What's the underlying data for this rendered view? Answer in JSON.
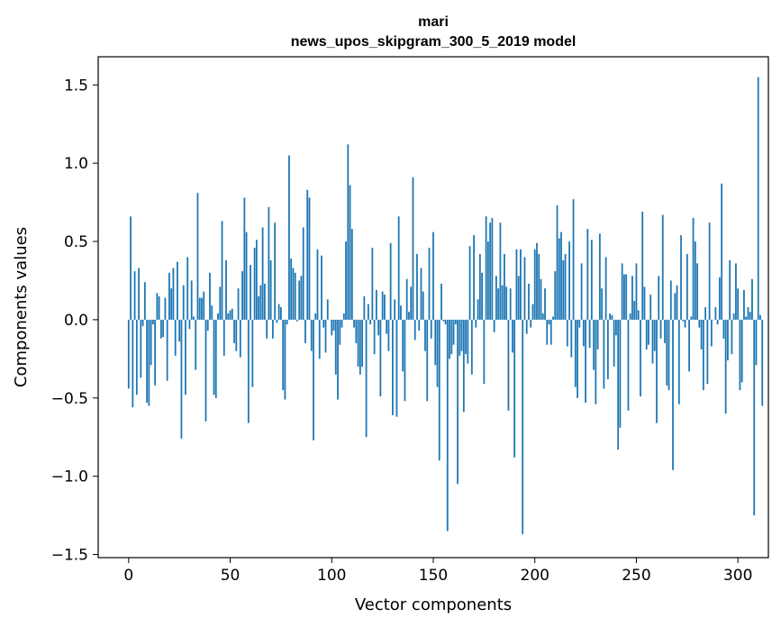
{
  "chart_data": {
    "type": "bar",
    "title": "mari",
    "subtitle": "news_upos_skipgram_300_5_2019 model",
    "xlabel": "Vector components",
    "ylabel": "Components values",
    "xlim": [
      -15,
      315
    ],
    "ylim": [
      -1.52,
      1.68
    ],
    "xticks": [
      0,
      50,
      100,
      150,
      200,
      250,
      300
    ],
    "yticks": [
      -1.5,
      -1.0,
      -0.5,
      0.0,
      0.5,
      1.0,
      1.5
    ],
    "ytick_labels": [
      "−1.5",
      "−1.0",
      "−0.5",
      "0.0",
      "0.5",
      "1.0",
      "1.5"
    ],
    "bar_color": "#1f77b4",
    "grid": false,
    "x_start": 0,
    "values": [
      -0.44,
      0.66,
      -0.56,
      0.31,
      -0.48,
      0.33,
      -0.37,
      -0.04,
      0.24,
      -0.53,
      -0.55,
      -0.29,
      -0.03,
      -0.42,
      0.17,
      0.15,
      -0.12,
      -0.11,
      0.14,
      -0.39,
      0.3,
      0.2,
      0.33,
      -0.23,
      0.37,
      -0.14,
      -0.76,
      0.22,
      -0.48,
      0.4,
      -0.06,
      0.25,
      0.02,
      -0.32,
      0.81,
      0.14,
      0.14,
      0.18,
      -0.65,
      -0.07,
      0.3,
      0.09,
      -0.48,
      -0.5,
      0.04,
      0.21,
      0.63,
      -0.23,
      0.38,
      0.04,
      0.06,
      0.07,
      -0.15,
      -0.2,
      0.2,
      -0.24,
      0.31,
      0.78,
      0.56,
      -0.66,
      0.35,
      -0.43,
      0.46,
      0.51,
      0.15,
      0.22,
      0.59,
      0.23,
      -0.12,
      0.72,
      0.38,
      -0.12,
      0.62,
      -0.02,
      0.1,
      0.08,
      -0.45,
      -0.51,
      -0.03,
      1.05,
      0.39,
      0.33,
      0.3,
      -0.01,
      0.25,
      0.28,
      0.59,
      -0.15,
      0.83,
      0.78,
      -0.2,
      -0.77,
      0.04,
      0.45,
      -0.25,
      0.41,
      -0.05,
      -0.21,
      0.13,
      0.0,
      -0.1,
      -0.07,
      -0.35,
      -0.51,
      -0.16,
      -0.05,
      0.04,
      0.5,
      1.12,
      0.86,
      0.58,
      -0.05,
      -0.15,
      -0.3,
      -0.35,
      -0.3,
      0.15,
      -0.75,
      0.1,
      -0.03,
      0.46,
      -0.22,
      0.19,
      -0.1,
      -0.49,
      0.18,
      0.16,
      -0.09,
      -0.2,
      0.49,
      -0.61,
      0.13,
      -0.62,
      0.66,
      0.09,
      -0.33,
      -0.52,
      0.26,
      0.05,
      0.21,
      0.91,
      -0.13,
      0.42,
      -0.07,
      0.33,
      0.18,
      -0.2,
      -0.52,
      0.46,
      -0.12,
      0.56,
      -0.29,
      -0.43,
      -0.9,
      0.23,
      -0.01,
      -0.03,
      -1.35,
      -0.25,
      -0.22,
      -0.16,
      -0.03,
      -1.05,
      -0.23,
      -0.2,
      -0.59,
      -0.22,
      -0.28,
      0.47,
      -0.35,
      0.54,
      -0.05,
      0.13,
      0.42,
      0.3,
      -0.41,
      0.66,
      0.5,
      0.62,
      0.65,
      -0.08,
      0.28,
      0.2,
      0.62,
      0.22,
      0.42,
      0.21,
      -0.58,
      0.2,
      -0.21,
      -0.88,
      0.45,
      0.28,
      0.45,
      -1.37,
      0.4,
      -0.09,
      0.23,
      -0.05,
      0.1,
      0.45,
      0.49,
      0.42,
      0.26,
      0.04,
      0.2,
      -0.16,
      -0.03,
      -0.16,
      0.02,
      0.31,
      0.73,
      0.52,
      0.56,
      0.38,
      0.42,
      -0.17,
      0.5,
      -0.24,
      0.77,
      -0.43,
      -0.5,
      -0.05,
      0.36,
      -0.17,
      -0.53,
      0.58,
      -0.18,
      0.51,
      -0.32,
      -0.54,
      -0.19,
      0.55,
      0.2,
      -0.44,
      0.4,
      -0.38,
      0.04,
      0.03,
      -0.3,
      -0.1,
      -0.83,
      -0.69,
      0.36,
      0.29,
      0.29,
      -0.58,
      0.04,
      0.28,
      0.12,
      0.36,
      0.06,
      -0.49,
      0.69,
      0.21,
      -0.19,
      -0.16,
      0.16,
      -0.28,
      -0.2,
      -0.66,
      0.28,
      -0.12,
      0.67,
      -0.15,
      -0.42,
      -0.45,
      0.25,
      -0.96,
      0.17,
      0.22,
      -0.54,
      0.54,
      -0.01,
      -0.05,
      0.42,
      -0.33,
      0.02,
      0.65,
      0.5,
      0.36,
      -0.05,
      -0.19,
      -0.45,
      0.08,
      -0.41,
      0.62,
      -0.17,
      0.0,
      0.08,
      -0.03,
      0.27,
      0.87,
      -0.12,
      -0.6,
      -0.26,
      0.38,
      -0.22,
      0.04,
      0.36,
      0.2,
      -0.45,
      -0.4,
      0.19,
      0.02,
      0.08,
      0.05,
      0.26,
      -1.25,
      -0.29,
      1.55,
      0.03,
      -0.55
    ]
  }
}
